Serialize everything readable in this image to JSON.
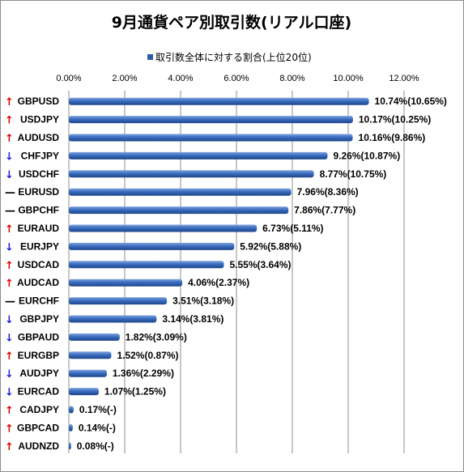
{
  "chart_data": {
    "type": "bar",
    "orientation": "horizontal",
    "title": "9月通貨ペア別取引数(リアル口座)",
    "legend": {
      "label": "取引数全体に対する割合(上位20位)",
      "position": "top"
    },
    "x_ticks": [
      "0.00%",
      "2.00%",
      "4.00%",
      "6.00%",
      "8.00%",
      "10.00%",
      "12.00%"
    ],
    "xlim": [
      0,
      12
    ],
    "grid": true,
    "bar_color": "#2e5ba6",
    "categories": [
      "GBPUSD",
      "USDJPY",
      "AUDUSD",
      "CHFJPY",
      "USDCHF",
      "EURUSD",
      "GBPCHF",
      "EURAUD",
      "EURJPY",
      "USDCAD",
      "AUDCAD",
      "EURCHF",
      "GBPJPY",
      "GBPAUD",
      "EURGBP",
      "AUDJPY",
      "EURCAD",
      "CADJPY",
      "GBPCAD",
      "AUDNZD"
    ],
    "trend": [
      "up",
      "up",
      "up",
      "down",
      "down",
      "flat",
      "flat",
      "up",
      "down",
      "up",
      "up",
      "flat",
      "down",
      "down",
      "up",
      "down",
      "down",
      "up",
      "up",
      "up"
    ],
    "trend_symbols": {
      "up": "↑",
      "down": "↓",
      "flat": "—"
    },
    "trend_colors": {
      "up": "#e00000",
      "down": "#1f1fd0",
      "flat": "#000000"
    },
    "values": [
      10.74,
      10.17,
      10.16,
      9.26,
      8.77,
      7.96,
      7.86,
      6.73,
      5.92,
      5.55,
      4.06,
      3.51,
      3.14,
      1.82,
      1.52,
      1.36,
      1.07,
      0.17,
      0.14,
      0.08
    ],
    "data_labels": [
      "10.74%(10.65%)",
      "10.17%(10.25%)",
      "10.16%(9.86%)",
      "9.26%(10.87%)",
      "8.77%(10.75%)",
      "7.96%(8.36%)",
      "7.86%(7.77%)",
      "6.73%(5.11%)",
      "5.92%(5.88%)",
      "5.55%(3.64%)",
      "4.06%(2.37%)",
      "3.51%(3.18%)",
      "3.14%(3.81%)",
      "1.82%(3.09%)",
      "1.52%(0.87%)",
      "1.36%(2.29%)",
      "1.07%(1.25%)",
      "0.17%(-)",
      "0.14%(-)",
      "0.08%(-)"
    ]
  }
}
